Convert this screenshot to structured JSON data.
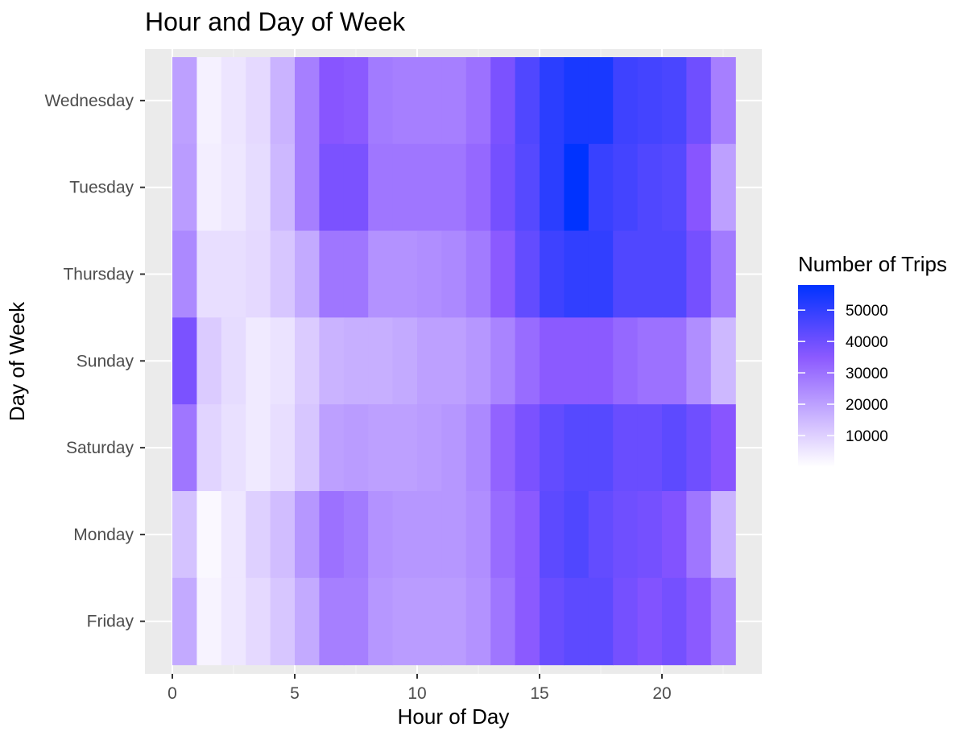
{
  "chart_data": {
    "type": "heatmap",
    "title": "Hour and Day of Week",
    "xlabel": "Hour of Day",
    "ylabel": "Day of Week",
    "x_ticks": [
      0,
      5,
      10,
      15,
      20
    ],
    "x_tick_labels": [
      "0",
      "5",
      "10",
      "15",
      "20"
    ],
    "xlim": [
      -0.5,
      23.5
    ],
    "x": [
      0,
      1,
      2,
      3,
      4,
      5,
      6,
      7,
      8,
      9,
      10,
      11,
      12,
      13,
      14,
      15,
      16,
      17,
      18,
      19,
      20,
      21,
      22
    ],
    "y": [
      "Wednesday",
      "Tuesday",
      "Thursday",
      "Sunday",
      "Saturday",
      "Monday",
      "Friday"
    ],
    "values": [
      [
        20000,
        3000,
        5500,
        8000,
        16000,
        27000,
        36000,
        35000,
        28000,
        27000,
        27000,
        27000,
        30000,
        38000,
        45000,
        51000,
        54000,
        54000,
        48000,
        47000,
        46000,
        40000,
        27000
      ],
      [
        21000,
        3500,
        5000,
        7500,
        15000,
        27000,
        38000,
        38000,
        29000,
        29000,
        29000,
        29000,
        32000,
        39000,
        44000,
        51000,
        58000,
        49000,
        47000,
        45000,
        44000,
        36000,
        20000
      ],
      [
        25000,
        7000,
        7000,
        8000,
        12000,
        18000,
        29000,
        29000,
        23000,
        23000,
        24000,
        25000,
        28000,
        35000,
        42000,
        48000,
        50000,
        50000,
        45000,
        45000,
        45000,
        39000,
        28000
      ],
      [
        38000,
        11000,
        7500,
        4500,
        6000,
        11000,
        16000,
        17000,
        17000,
        18000,
        20000,
        20000,
        22000,
        26000,
        31000,
        35000,
        35000,
        35000,
        32000,
        30000,
        30000,
        24000,
        15000
      ],
      [
        29000,
        9000,
        6500,
        4500,
        7000,
        12000,
        20000,
        21000,
        20000,
        20000,
        21000,
        22000,
        25000,
        33000,
        38000,
        42000,
        44000,
        44000,
        41000,
        41000,
        43000,
        40000,
        36000
      ],
      [
        13000,
        1500,
        5000,
        10000,
        14000,
        22000,
        30000,
        28000,
        23000,
        22000,
        22000,
        22000,
        24000,
        31000,
        35000,
        43000,
        45000,
        42000,
        40000,
        39000,
        37000,
        29000,
        16000
      ],
      [
        18000,
        2500,
        5000,
        8000,
        12000,
        18000,
        27000,
        27000,
        22000,
        21000,
        21000,
        21000,
        23000,
        29000,
        35000,
        41000,
        43000,
        43000,
        39000,
        37000,
        39000,
        35000,
        27000
      ]
    ],
    "legend_title": "Number of Trips",
    "legend_ticks": [
      10000,
      20000,
      30000,
      40000,
      50000
    ],
    "legend_tick_labels": [
      "10000",
      "20000",
      "30000",
      "40000",
      "50000"
    ],
    "value_range": [
      0,
      58000
    ],
    "color_low": "#ffffff",
    "color_high": "#0033ff",
    "color_mid": "#8855ff",
    "panel_background": "#ebebeb",
    "grid": true,
    "legend_position": "right"
  }
}
